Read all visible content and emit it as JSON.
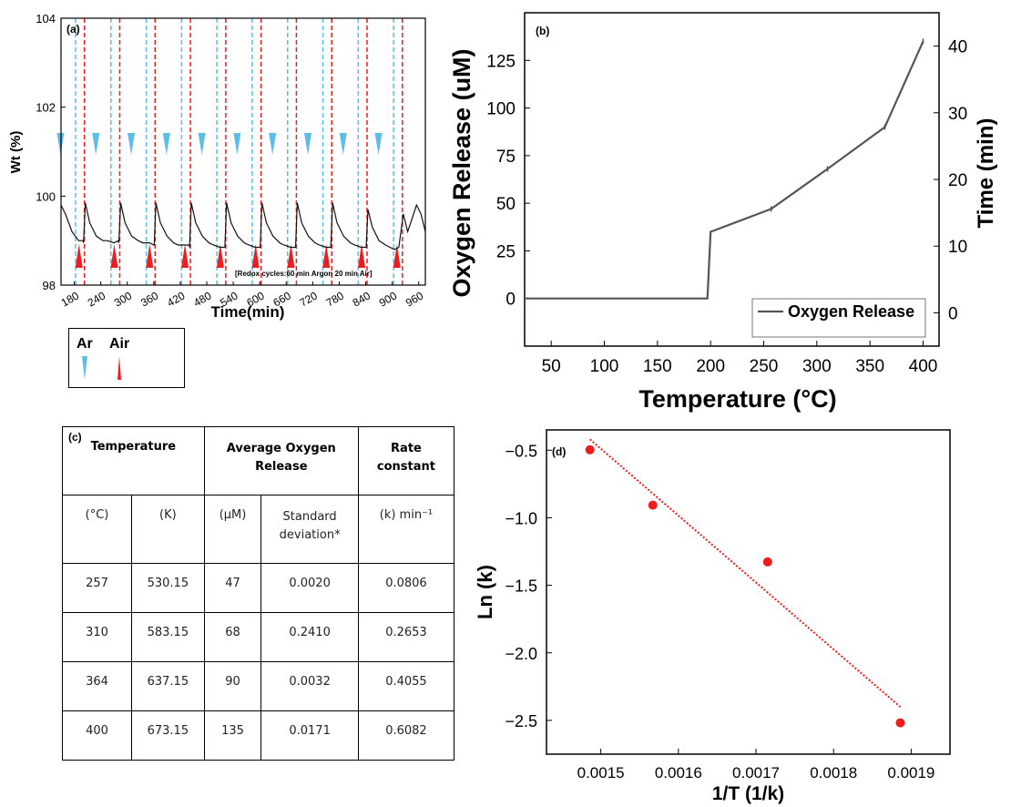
{
  "chart_data": [
    {
      "panel": "(a)",
      "type": "line",
      "ylabel": "Wt (%)",
      "xlabel": "Time(min)",
      "xlim": [
        150,
        975
      ],
      "ylim": [
        98,
        104
      ],
      "x_ticks": [
        180,
        240,
        300,
        360,
        420,
        480,
        540,
        600,
        660,
        720,
        780,
        840,
        900,
        960
      ],
      "y_ticks": [
        98,
        100,
        102,
        104
      ],
      "annotation": "[Redox cycles:60 min Argon 20 min Air]",
      "ar_switch_times": [
        183,
        263,
        343,
        423,
        503,
        583,
        663,
        743,
        823,
        903
      ],
      "air_switch_times": [
        203,
        283,
        363,
        443,
        523,
        603,
        683,
        763,
        843,
        923
      ],
      "series": [
        {
          "name": "",
          "color": "#111111",
          "x": [
            150,
            160,
            175,
            190,
            200,
            201,
            205,
            215,
            230,
            245,
            255,
            270,
            280,
            281,
            285,
            295,
            310,
            325,
            335,
            350,
            360,
            361,
            365,
            375,
            390,
            405,
            415,
            430,
            440,
            441,
            445,
            455,
            470,
            485,
            495,
            510,
            520,
            521,
            525,
            535,
            550,
            565,
            575,
            590,
            600,
            601,
            605,
            615,
            630,
            645,
            655,
            670,
            680,
            681,
            685,
            695,
            710,
            725,
            735,
            750,
            760,
            761,
            765,
            775,
            790,
            805,
            815,
            830,
            840,
            841,
            845,
            855,
            870,
            885,
            895,
            905,
            915,
            925,
            935,
            945,
            955,
            965,
            975
          ],
          "y": [
            99.8,
            99.6,
            99.2,
            99.0,
            99.0,
            98.95,
            99.85,
            99.4,
            99.1,
            99.0,
            99.0,
            98.95,
            99.0,
            98.95,
            99.85,
            99.4,
            99.1,
            99.0,
            98.95,
            98.95,
            98.9,
            98.9,
            99.85,
            99.4,
            99.1,
            98.95,
            98.9,
            98.9,
            98.9,
            98.85,
            99.85,
            99.4,
            99.1,
            98.95,
            98.9,
            98.85,
            98.85,
            98.85,
            99.85,
            99.4,
            99.1,
            98.95,
            98.9,
            98.85,
            98.85,
            98.85,
            99.85,
            99.4,
            99.1,
            98.95,
            98.9,
            98.85,
            98.85,
            98.85,
            99.85,
            99.4,
            99.1,
            98.95,
            98.9,
            98.85,
            98.85,
            98.85,
            99.85,
            99.4,
            99.1,
            98.95,
            98.9,
            98.85,
            98.85,
            98.85,
            99.7,
            99.3,
            99.0,
            98.9,
            98.85,
            98.8,
            98.85,
            99.6,
            99.2,
            99.5,
            99.8,
            99.6,
            99.2
          ]
        }
      ],
      "legend_items": [
        {
          "label": "Ar",
          "color": "#5bbde8"
        },
        {
          "label": "Air",
          "color": "#ee1c1c"
        }
      ]
    },
    {
      "panel": "(b)",
      "type": "line",
      "xlabel": "Temperature (°C)",
      "ylabel": "Oxygen Release (uM)",
      "y2label": "Time (min)",
      "xlim": [
        25,
        415
      ],
      "ylim": [
        -25,
        150
      ],
      "y2lim": [
        -5,
        45
      ],
      "x_ticks": [
        50,
        100,
        150,
        200,
        250,
        300,
        350,
        400
      ],
      "y_ticks": [
        0,
        25,
        50,
        75,
        100,
        125
      ],
      "y2_ticks": [
        0,
        10,
        20,
        30,
        40
      ],
      "series": [
        {
          "name": "Oxygen Release",
          "color": "#555555",
          "x": [
            25,
            197,
            200,
            257,
            310,
            364,
            400
          ],
          "y": [
            0,
            0,
            35,
            47,
            68,
            90,
            135
          ]
        }
      ],
      "legend": "bottom-right"
    },
    {
      "panel": "(d)",
      "type": "scatter",
      "xlabel": "1/T (1/k)",
      "ylabel": "Ln (k)",
      "xlim": [
        0.00143,
        0.00195
      ],
      "ylim": [
        -2.75,
        -0.35
      ],
      "x_ticks": [
        0.0015,
        0.0016,
        0.0017,
        0.0018,
        0.0019
      ],
      "y_ticks": [
        -0.5,
        -1.0,
        -1.5,
        -2.0,
        -2.5
      ],
      "points": {
        "x": [
          0.001486,
          0.001567,
          0.001715,
          0.001886
        ],
        "y": [
          -0.497,
          -0.907,
          -1.327,
          -2.518
        ]
      },
      "fit_line": {
        "x": [
          0.001486,
          0.001886
        ],
        "y": [
          -0.42,
          -2.4
        ]
      },
      "point_color": "#ee1c1c"
    }
  ],
  "labels": {
    "panel_a": "(a)",
    "panel_b": "(b)",
    "panel_c": "(c)",
    "panel_d": "(d)",
    "ar": "Ar",
    "air": "Air",
    "y2_time": "Time (min)"
  },
  "table": {
    "header_temperature": "Temperature",
    "header_avg_release": "Average Oxygen Release",
    "header_rate": "Rate constant",
    "sub_c": "(°C)",
    "sub_k": "(K)",
    "sub_um": "(μM)",
    "sub_sd": "Standard deviation*",
    "sub_rate": "(k) min⁻¹",
    "rows": [
      {
        "c": "257",
        "k": "530.15",
        "um": "47",
        "sd": "0.0020",
        "rate": "0.0806"
      },
      {
        "c": "310",
        "k": "583.15",
        "um": "68",
        "sd": "0.2410",
        "rate": "0.2653"
      },
      {
        "c": "364",
        "k": "637.15",
        "um": "90",
        "sd": "0.0032",
        "rate": "0.4055"
      },
      {
        "c": "400",
        "k": "673.15",
        "um": "135",
        "sd": "0.0171",
        "rate": "0.6082"
      }
    ]
  }
}
